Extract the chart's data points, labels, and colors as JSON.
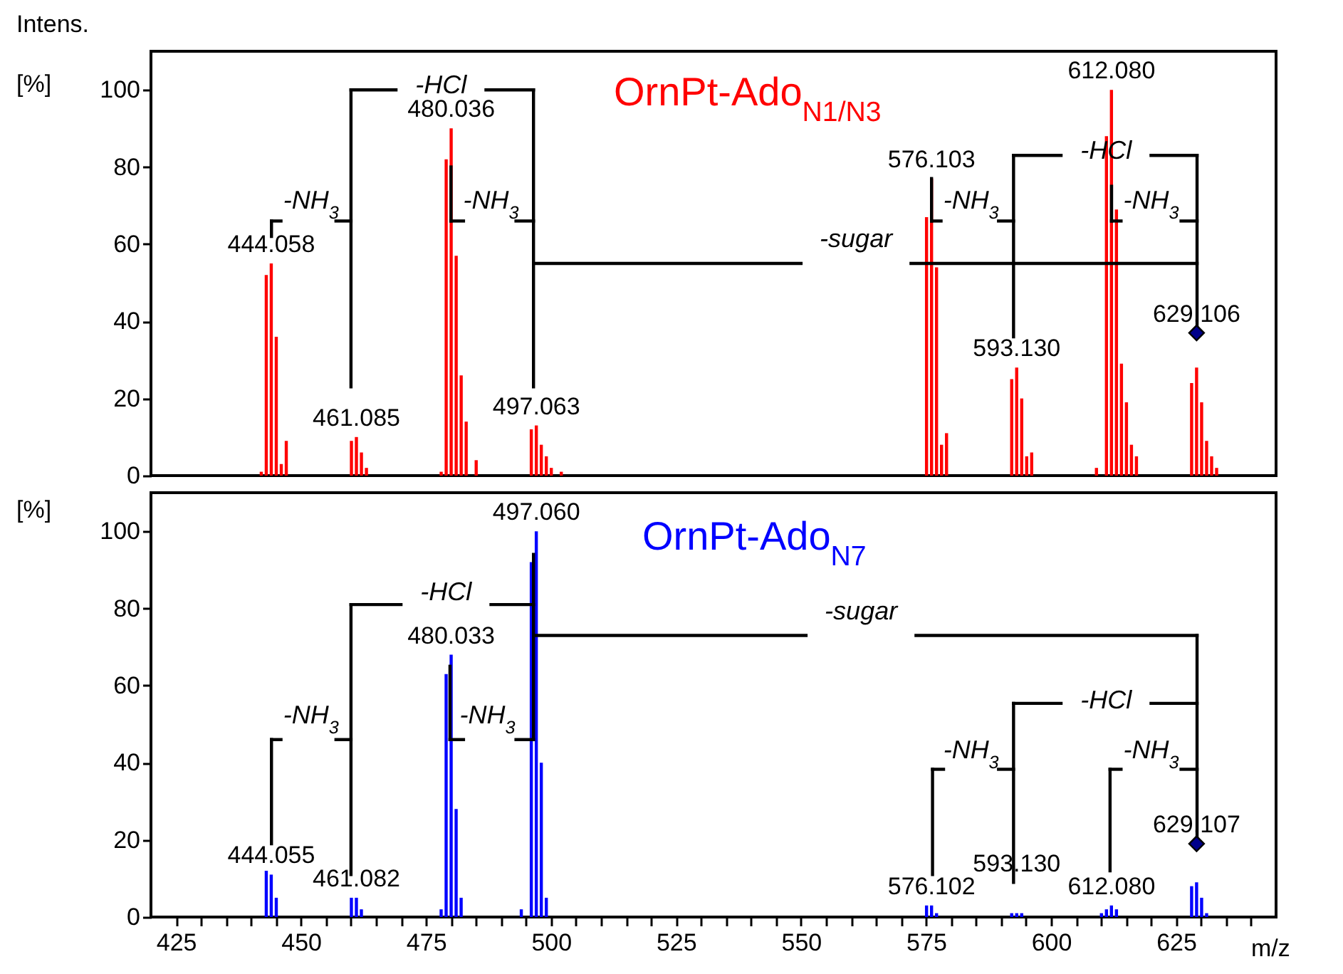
{
  "chart_data": [
    {
      "type": "bar",
      "title": "OrnPt-Ado$_{N1/N3}$",
      "ylabel": "Intens.\n[%]",
      "xlim": [
        420,
        645
      ],
      "ylim": [
        0,
        110
      ],
      "yticks": [
        0,
        20,
        40,
        60,
        80,
        100
      ],
      "tick_labels": "y",
      "grid": false,
      "series": [
        {
          "color": "#ff0000",
          "x": [
            442.06,
            443.06,
            444.058,
            445.06,
            446.06,
            447.06,
            460.09,
            461.085,
            462.09,
            463.09,
            478.04,
            479.04,
            480.036,
            481.04,
            482.04,
            483.04,
            485.04,
            496.06,
            497.063,
            498.06,
            499.06,
            500.06,
            502.06,
            575.1,
            576.103,
            577.1,
            578.1,
            579.1,
            592.13,
            593.13,
            594.13,
            595.13,
            596.13,
            609.08,
            611.08,
            612.08,
            613.08,
            614.08,
            615.08,
            616.08,
            617.08,
            628.11,
            629.106,
            630.11,
            631.11,
            632.11,
            633.11
          ],
          "values": [
            1,
            52,
            55,
            36,
            3,
            9,
            9,
            10,
            6,
            2,
            1,
            82,
            90,
            57,
            26,
            14,
            4,
            12,
            13,
            8,
            5,
            2,
            1,
            67,
            77,
            54,
            8,
            11,
            25,
            28,
            20,
            5,
            6,
            2,
            88,
            100,
            69,
            29,
            19,
            8,
            5,
            24,
            28,
            19,
            9,
            5,
            2
          ]
        },
        {
          "type": "scatter",
          "marker": "diamond",
          "color": "#00008b",
          "x": [
            629.106
          ],
          "values": [
            37
          ]
        }
      ],
      "annotations": [
        {
          "text": "444.058",
          "x": 444.058,
          "y": 55
        },
        {
          "text": "461.085",
          "x": 461.085,
          "y": 10
        },
        {
          "text": "480.036",
          "x": 480.036,
          "y": 90
        },
        {
          "text": "497.063",
          "x": 497.063,
          "y": 13
        },
        {
          "text": "576.103",
          "x": 576.103,
          "y": 77
        },
        {
          "text": "593.130",
          "x": 593.13,
          "y": 28
        },
        {
          "text": "612.080",
          "x": 612.08,
          "y": 100
        },
        {
          "text": "629.106",
          "x": 629.106,
          "y": 37
        },
        "-NH$_{3}$",
        "-HCl",
        "-NH$_{3}$",
        "-sugar",
        "-NH$_{3}$",
        {
          "text": "-HCl",
          "x": 612.08,
          "y": 75
        },
        "-NH$_{3}$"
      ]
    },
    {
      "type": "bar",
      "title": "OrnPt-Ado$_{N7}$",
      "ylabel": "[%]",
      "xlabel": "m/z",
      "xlim": [
        420,
        645
      ],
      "ylim": [
        0,
        110
      ],
      "yticks": [
        0,
        20,
        40,
        60,
        80,
        100
      ],
      "xticks": [
        425,
        {
          "value": 430,
          "label": null
        },
        {
          "value": 435,
          "label": null
        },
        {
          "value": 440,
          "label": null
        },
        {
          "value": 445,
          "label": null
        },
        450,
        {
          "value": 455,
          "label": null
        },
        {
          "value": 460,
          "label": null
        },
        {
          "value": 465,
          "label": null
        },
        {
          "value": 470,
          "label": null
        },
        475,
        {
          "value": 480,
          "label": null
        },
        {
          "value": 485,
          "label": null
        },
        {
          "value": 490,
          "label": null
        },
        {
          "value": 495,
          "label": null
        },
        500,
        {
          "value": 505,
          "label": null
        },
        {
          "value": 510,
          "label": null
        },
        {
          "value": 515,
          "label": null
        },
        {
          "value": 520,
          "label": null
        },
        525,
        {
          "value": 530,
          "label": null
        },
        {
          "value": 535,
          "label": null
        },
        {
          "value": 540,
          "label": null
        },
        {
          "value": 545,
          "label": null
        },
        550,
        {
          "value": 555,
          "label": null
        },
        {
          "value": 560,
          "label": null
        },
        {
          "value": 565,
          "label": null
        },
        {
          "value": 570,
          "label": null
        },
        575,
        {
          "value": 580,
          "label": null
        },
        {
          "value": 585,
          "label": null
        },
        {
          "value": 590,
          "label": null
        },
        {
          "value": 595,
          "label": null
        },
        600,
        {
          "value": 605,
          "label": null
        },
        {
          "value": 610,
          "label": null
        },
        {
          "value": 615,
          "label": null
        },
        {
          "value": 620,
          "label": null
        },
        625,
        {
          "value": 630,
          "label": null
        },
        {
          "value": 635,
          "label": null
        },
        {
          "value": 640,
          "label": null
        }
      ],
      "grid": false,
      "series": [
        {
          "color": "#0000ff",
          "x": [
            443.06,
            444.055,
            445.06,
            460.08,
            461.082,
            462.08,
            478.03,
            479.03,
            480.033,
            481.03,
            482.03,
            494.06,
            496.06,
            497.06,
            498.06,
            499.06,
            575.1,
            576.102,
            577.1,
            592.13,
            593.13,
            594.13,
            610.08,
            611.08,
            612.08,
            613.08,
            628.11,
            629.107,
            630.11,
            631.11
          ],
          "values": [
            12,
            11,
            5,
            5,
            5,
            2,
            2,
            63,
            68,
            28,
            5,
            2,
            92,
            100,
            40,
            5,
            3,
            3,
            1,
            1,
            1,
            1,
            1,
            2,
            3,
            2,
            8,
            9,
            5,
            1
          ]
        },
        {
          "type": "scatter",
          "marker": "diamond",
          "color": "#00008b",
          "x": [
            629.107
          ],
          "values": [
            19
          ]
        }
      ],
      "annotations": [
        {
          "text": "444.055",
          "x": 444.055,
          "y": 11
        },
        {
          "text": "461.082",
          "x": 461.082,
          "y": 5
        },
        {
          "text": "480.033",
          "x": 480.033,
          "y": 68
        },
        {
          "text": "497.060",
          "x": 497.06,
          "y": 100
        },
        {
          "text": "576.102",
          "x": 576.102,
          "y": 3
        },
        {
          "text": "593.130",
          "x": 593.13,
          "y": 1
        },
        {
          "text": "612.080",
          "x": 612.08,
          "y": 3
        },
        {
          "text": "629.107",
          "x": 629.107,
          "y": 19
        },
        "-NH$_{3}$",
        {
          "text": "-HCl",
          "x": 496.5,
          "y": 81
        },
        {
          "text": "-NH$_{3}$",
          "x": 496.5,
          "y": 46
        },
        {
          "text": "-sugar",
          "x": 496.5,
          "y": 73
        },
        "-NH$_{3}$",
        "-HCl",
        "-NH$_{3}$"
      ]
    }
  ]
}
